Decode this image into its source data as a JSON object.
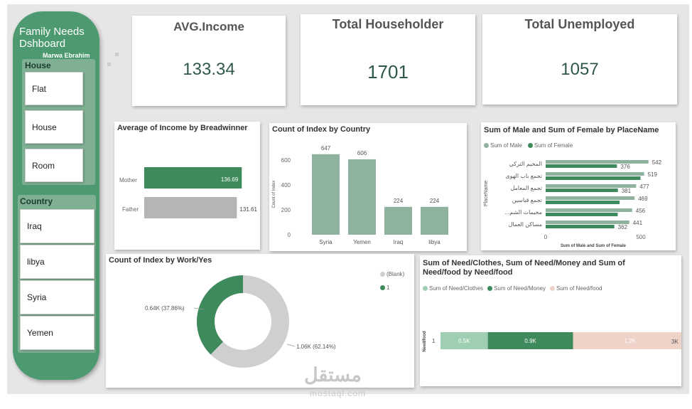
{
  "sidebar": {
    "title": "Family Needs Dshboard",
    "author": "Marwa Ebrahim",
    "house": {
      "heading": "House",
      "items": [
        "Flat",
        "House",
        "Room"
      ]
    },
    "country": {
      "heading": "Country",
      "items": [
        "Iraq",
        "libya",
        "Syria",
        "Yemen"
      ]
    }
  },
  "kpis": [
    {
      "title": "AVG.Income",
      "value": "133.34"
    },
    {
      "title": "Total Householder",
      "value": "1701"
    },
    {
      "title": "Total Unemployed",
      "value": "1057"
    }
  ],
  "colors": {
    "green": "#3e8a5c",
    "grey": "#b5b5b5",
    "sage": "#8fb29f",
    "pink": "#efd2c8",
    "lightgreen": "#9fcfb2",
    "sidebar": "#4e9a70"
  },
  "chart_data": [
    {
      "type": "bar",
      "orientation": "horizontal",
      "title": "Average of Income by Breadwinner",
      "categories": [
        "Mother",
        "Father"
      ],
      "values": [
        136.69,
        131.61
      ],
      "data_labels": [
        "136.69",
        "131.61"
      ]
    },
    {
      "type": "bar",
      "title": "Count of Index by Country",
      "ylabel": "Count of Index",
      "categories": [
        "Syria",
        "Yemen",
        "Iraq",
        "libya"
      ],
      "values": [
        647,
        606,
        224,
        224
      ],
      "yticks": [
        "0",
        "200",
        "400",
        "600"
      ],
      "ylim": [
        0,
        700
      ]
    },
    {
      "type": "bar",
      "orientation": "horizontal",
      "title": "Sum of Male and Sum of Female by PlaceName",
      "ylabel": "PlaceName",
      "xlabel": "Sum of Male and Sum of Female",
      "legend": [
        "Sum of Male",
        "Sum of Female"
      ],
      "categories": [
        "المخيم التركي",
        "تجمع باب الهوى",
        "تجمع المعامل",
        "تجمع قباسين",
        "...مخيمات الشم",
        "مساكن العمال"
      ],
      "series": [
        {
          "name": "Sum of Male",
          "values": [
            542,
            519,
            477,
            469,
            456,
            441
          ]
        },
        {
          "name": "Sum of Female",
          "values": [
            376,
            500,
            381,
            390,
            380,
            362
          ]
        }
      ],
      "male_labels": [
        "542",
        "519",
        "477",
        "469",
        "456",
        "441"
      ],
      "female_labels": [
        "376",
        "",
        "381",
        "",
        "",
        "362"
      ],
      "xticks": [
        "0",
        "500"
      ],
      "xlim": [
        0,
        600
      ]
    },
    {
      "type": "pie",
      "donut": true,
      "title": "Count of Index by Work/Yes",
      "legend": [
        "(Blank)",
        "1"
      ],
      "values": [
        1060,
        640
      ],
      "labels": [
        "1.06K (62.14%)",
        "0.64K (37.86%)"
      ]
    },
    {
      "type": "bar",
      "orientation": "horizontal",
      "stacked": true,
      "title": "Sum of Need/Clothes, Sum of Need/Money and Sum of Need/food by Need/food",
      "ylabel": "Need/food",
      "legend": [
        "Sum of Need/Clothes",
        "Sum of Need/Money",
        "Sum of Need/food"
      ],
      "category": "1",
      "values": [
        500,
        900,
        1200
      ],
      "data_labels": [
        "0.5K",
        "0.9K",
        "1.2K"
      ],
      "axis_max_label": "3K"
    }
  ],
  "watermark": {
    "text": "مستقل",
    "sub": "mostaql.com"
  }
}
